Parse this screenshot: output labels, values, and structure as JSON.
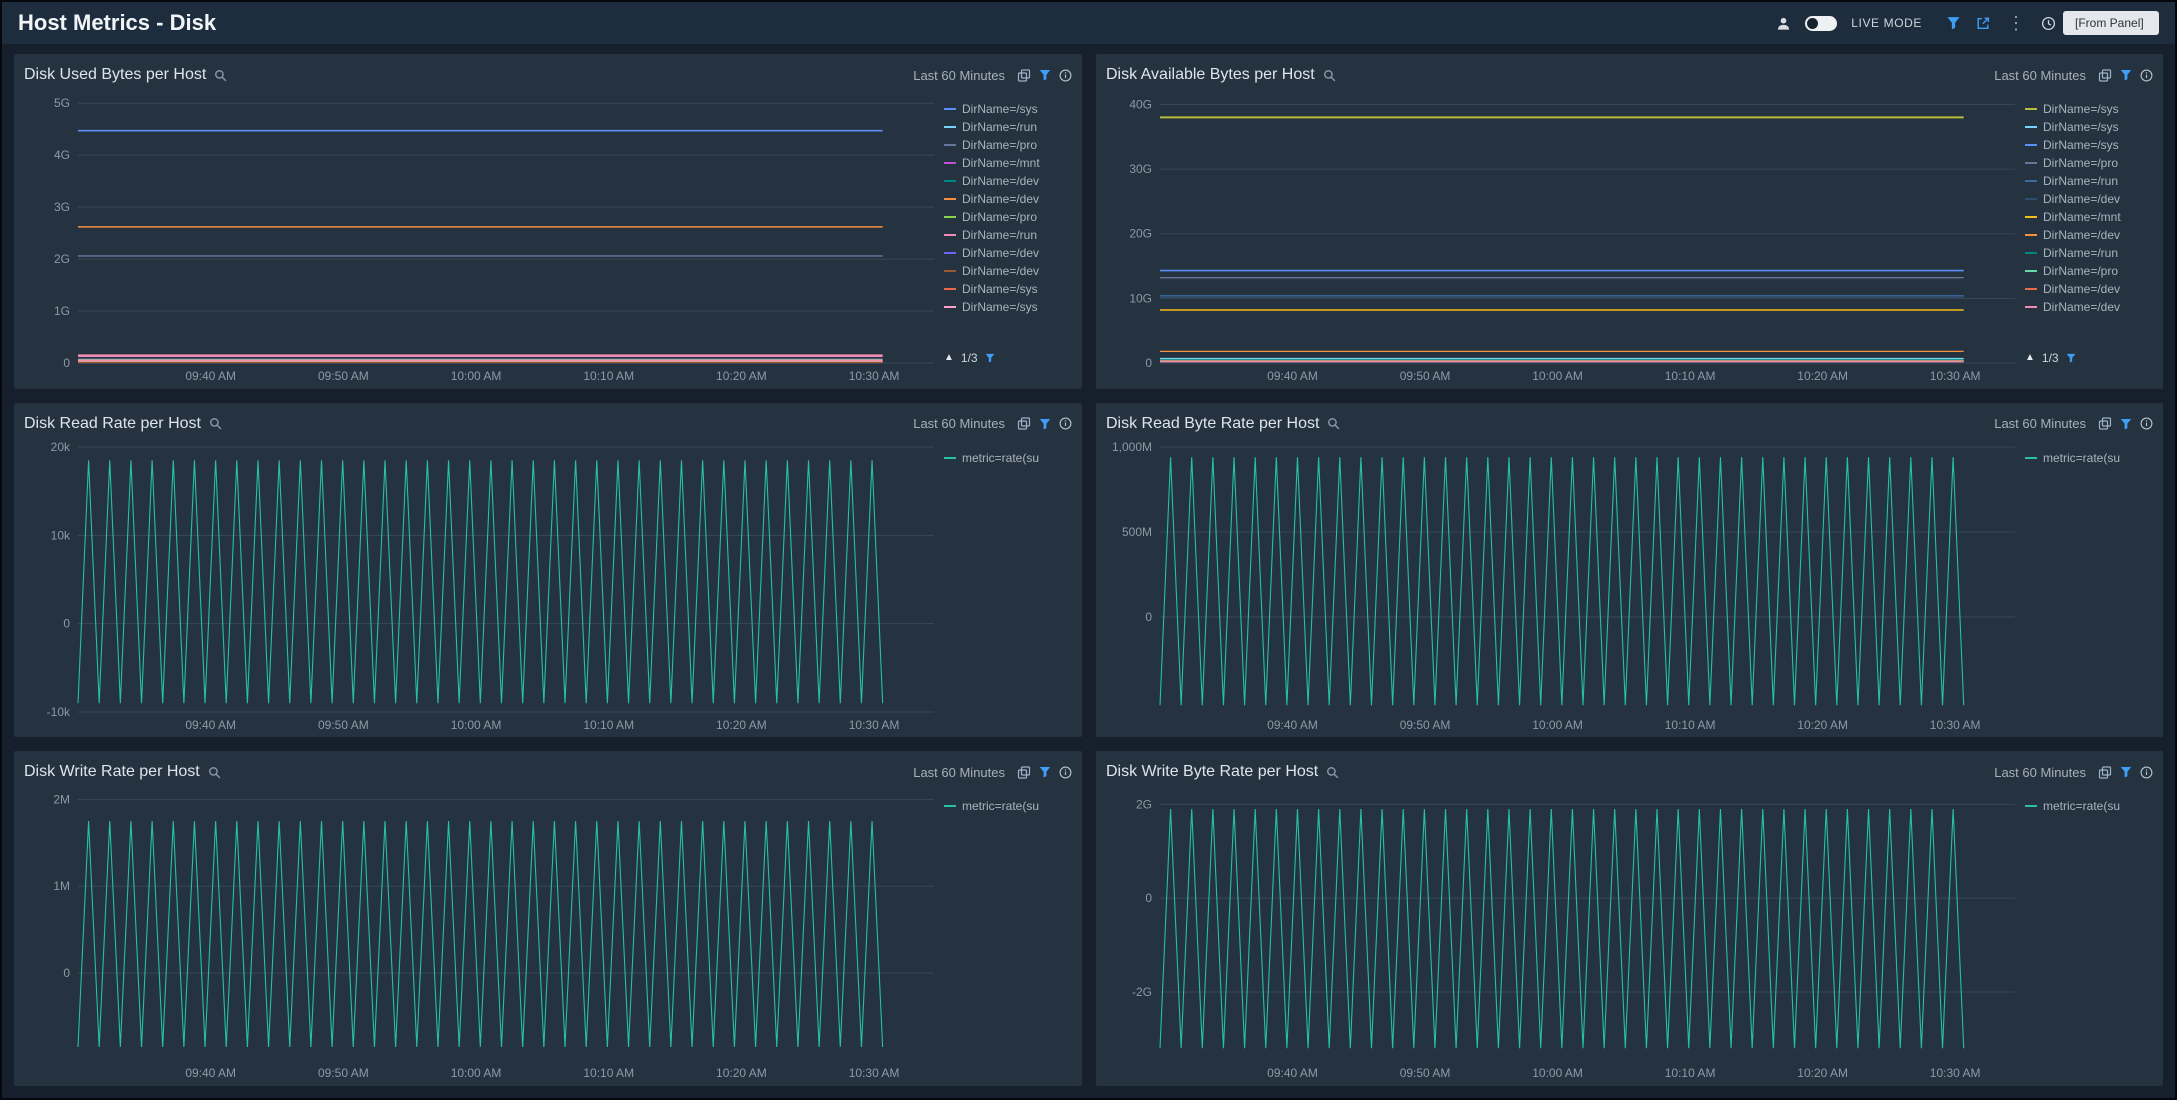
{
  "topbar": {
    "title": "Host Metrics - Disk",
    "live_mode_label": "LIVE MODE",
    "time_selector_label": "[From Panel]"
  },
  "icons": {
    "kebab": "⋮",
    "legend_up_arrow": "▲"
  },
  "accent_colors": {
    "filter_blue": "#3f9ef8",
    "series_teal": "#27c0a2"
  },
  "panels": [
    {
      "title": "Disk Used Bytes per Host",
      "time_range": "Last 60 Minutes",
      "legend_pagination": "1/3",
      "chart_data": {
        "type": "line",
        "ylim": [
          0,
          5.1
        ],
        "yticks": [
          {
            "value": 0,
            "label": "0"
          },
          {
            "value": 1,
            "label": "1G"
          },
          {
            "value": 2,
            "label": "2G"
          },
          {
            "value": 3,
            "label": "3G"
          },
          {
            "value": 4,
            "label": "4G"
          },
          {
            "value": 5,
            "label": "5G"
          }
        ],
        "xticks": [
          {
            "pos": 0.155,
            "label": "09:40 AM"
          },
          {
            "pos": 0.31,
            "label": "09:50 AM"
          },
          {
            "pos": 0.465,
            "label": "10:00 AM"
          },
          {
            "pos": 0.62,
            "label": "10:10 AM"
          },
          {
            "pos": 0.775,
            "label": "10:20 AM"
          },
          {
            "pos": 0.93,
            "label": "10:30 AM"
          }
        ],
        "series": [
          {
            "label": "DirName=/sys",
            "color": "#5b8ff9",
            "value": 4.47,
            "width": 1.6
          },
          {
            "label": "DirName=/run",
            "color": "#78d3f8",
            "value": 0.07
          },
          {
            "label": "DirName=/pro",
            "color": "#65789b",
            "value": 2.06
          },
          {
            "label": "DirName=/mnt",
            "color": "#c24fd8",
            "value": 0.012
          },
          {
            "label": "DirName=/dev",
            "color": "#008685",
            "value": 0.03
          },
          {
            "label": "DirName=/dev",
            "color": "#f6903d",
            "value": 2.62,
            "width": 1.6
          },
          {
            "label": "DirName=/pro",
            "color": "#8bd24c",
            "value": 0.02
          },
          {
            "label": "DirName=/run",
            "color": "#f08bb4",
            "value": 0.14,
            "width": 2.6
          },
          {
            "label": "DirName=/dev",
            "color": "#7262fd",
            "value": 0.01
          },
          {
            "label": "DirName=/dev",
            "color": "#99582e",
            "value": 0.008
          },
          {
            "label": "DirName=/sys",
            "color": "#e8684a",
            "value": 0.055
          },
          {
            "label": "DirName=/sys",
            "color": "#ff9ec6",
            "value": 0.04
          }
        ]
      }
    },
    {
      "title": "Disk Available Bytes per Host",
      "time_range": "Last 60 Minutes",
      "legend_pagination": "1/3",
      "chart_data": {
        "type": "line",
        "ylim": [
          0,
          41
        ],
        "yticks": [
          {
            "value": 0,
            "label": "0"
          },
          {
            "value": 10,
            "label": "10G"
          },
          {
            "value": 20,
            "label": "20G"
          },
          {
            "value": 30,
            "label": "30G"
          },
          {
            "value": 40,
            "label": "40G"
          }
        ],
        "xticks": [
          {
            "pos": 0.155,
            "label": "09:40 AM"
          },
          {
            "pos": 0.31,
            "label": "09:50 AM"
          },
          {
            "pos": 0.465,
            "label": "10:00 AM"
          },
          {
            "pos": 0.62,
            "label": "10:10 AM"
          },
          {
            "pos": 0.775,
            "label": "10:20 AM"
          },
          {
            "pos": 0.93,
            "label": "10:30 AM"
          }
        ],
        "series": [
          {
            "label": "DirName=/sys",
            "color": "#b7bc3a",
            "value": 38.0,
            "width": 2
          },
          {
            "label": "DirName=/sys",
            "color": "#78d3f8",
            "value": 0.7
          },
          {
            "label": "DirName=/sys",
            "color": "#5b8ff9",
            "value": 14.3,
            "width": 1.6
          },
          {
            "label": "DirName=/pro",
            "color": "#65789b",
            "value": 13.2
          },
          {
            "label": "DirName=/run",
            "color": "#3e6b9e",
            "value": 10.4
          },
          {
            "label": "DirName=/dev",
            "color": "#2f4b6e",
            "value": 10.2
          },
          {
            "label": "DirName=/mnt",
            "color": "#f6bd16",
            "value": 8.2,
            "width": 1.6
          },
          {
            "label": "DirName=/dev",
            "color": "#f6903d",
            "value": 1.8
          },
          {
            "label": "DirName=/run",
            "color": "#008685",
            "value": 0.5
          },
          {
            "label": "DirName=/pro",
            "color": "#61ddaa",
            "value": 0.4
          },
          {
            "label": "DirName=/dev",
            "color": "#e8684a",
            "value": 0.3
          },
          {
            "label": "DirName=/dev",
            "color": "#f08bb4",
            "value": 0.2
          }
        ]
      }
    },
    {
      "title": "Disk Read Rate per Host",
      "time_range": "Last 60 Minutes",
      "chart_data": {
        "type": "line",
        "ylim": [
          -10000,
          20000
        ],
        "yticks": [
          {
            "value": -10000,
            "label": "-10k"
          },
          {
            "value": 0,
            "label": "0"
          },
          {
            "value": 10000,
            "label": "10k"
          },
          {
            "value": 20000,
            "label": "20k"
          }
        ],
        "xticks": [
          {
            "pos": 0.155,
            "label": "09:40 AM"
          },
          {
            "pos": 0.31,
            "label": "09:50 AM"
          },
          {
            "pos": 0.465,
            "label": "10:00 AM"
          },
          {
            "pos": 0.62,
            "label": "10:10 AM"
          },
          {
            "pos": 0.775,
            "label": "10:20 AM"
          },
          {
            "pos": 0.93,
            "label": "10:30 AM"
          }
        ],
        "series": [
          {
            "label": "metric=rate(su",
            "color": "#27c0a2",
            "pattern": "sawtooth",
            "min": -9000,
            "max": 18500,
            "cycles": 38
          }
        ]
      }
    },
    {
      "title": "Disk Read Byte Rate per Host",
      "time_range": "Last 60 Minutes",
      "chart_data": {
        "type": "line",
        "ylim": [
          -560,
          1000
        ],
        "yticks": [
          {
            "value": 0,
            "label": "0"
          },
          {
            "value": 500,
            "label": "500M"
          },
          {
            "value": 1000,
            "label": "1,000M"
          }
        ],
        "xticks": [
          {
            "pos": 0.155,
            "label": "09:40 AM"
          },
          {
            "pos": 0.31,
            "label": "09:50 AM"
          },
          {
            "pos": 0.465,
            "label": "10:00 AM"
          },
          {
            "pos": 0.62,
            "label": "10:10 AM"
          },
          {
            "pos": 0.775,
            "label": "10:20 AM"
          },
          {
            "pos": 0.93,
            "label": "10:30 AM"
          }
        ],
        "series": [
          {
            "label": "metric=rate(su",
            "color": "#27c0a2",
            "pattern": "sawtooth",
            "min": -520,
            "max": 940,
            "cycles": 38
          }
        ]
      }
    },
    {
      "title": "Disk Write Rate per Host",
      "time_range": "Last 60 Minutes",
      "chart_data": {
        "type": "line",
        "ylim": [
          -1,
          2.05
        ],
        "yticks": [
          {
            "value": 0,
            "label": "0"
          },
          {
            "value": 1,
            "label": "1M"
          },
          {
            "value": 2,
            "label": "2M"
          }
        ],
        "xticks": [
          {
            "pos": 0.155,
            "label": "09:40 AM"
          },
          {
            "pos": 0.31,
            "label": "09:50 AM"
          },
          {
            "pos": 0.465,
            "label": "10:00 AM"
          },
          {
            "pos": 0.62,
            "label": "10:10 AM"
          },
          {
            "pos": 0.775,
            "label": "10:20 AM"
          },
          {
            "pos": 0.93,
            "label": "10:30 AM"
          }
        ],
        "series": [
          {
            "label": "metric=rate(su",
            "color": "#27c0a2",
            "pattern": "sawtooth",
            "min": -0.85,
            "max": 1.75,
            "cycles": 38
          }
        ]
      }
    },
    {
      "title": "Disk Write Byte Rate per Host",
      "time_range": "Last 60 Minutes",
      "chart_data": {
        "type": "line",
        "ylim": [
          -3.45,
          2.2
        ],
        "yticks": [
          {
            "value": -2,
            "label": "-2G"
          },
          {
            "value": 0,
            "label": "0"
          },
          {
            "value": 2,
            "label": "2G"
          }
        ],
        "xticks": [
          {
            "pos": 0.155,
            "label": "09:40 AM"
          },
          {
            "pos": 0.31,
            "label": "09:50 AM"
          },
          {
            "pos": 0.465,
            "label": "10:00 AM"
          },
          {
            "pos": 0.62,
            "label": "10:10 AM"
          },
          {
            "pos": 0.775,
            "label": "10:20 AM"
          },
          {
            "pos": 0.93,
            "label": "10:30 AM"
          }
        ],
        "series": [
          {
            "label": "metric=rate(su",
            "color": "#27c0a2",
            "pattern": "sawtooth",
            "min": -3.2,
            "max": 1.9,
            "cycles": 38
          }
        ]
      }
    }
  ]
}
